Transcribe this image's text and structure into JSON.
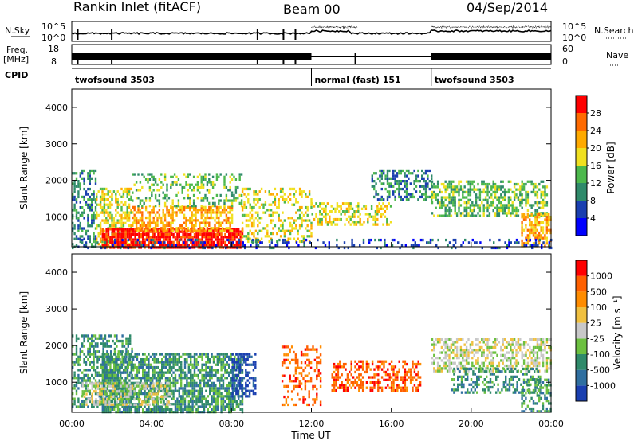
{
  "header": {
    "station": "Rankin Inlet (fitACF)",
    "beam": "Beam 00",
    "date": "04/Sep/2014"
  },
  "top_panels": {
    "nsky_label": "N.Sky",
    "nsky_ticks": [
      "10^5",
      "10^0"
    ],
    "nsearch_label": "N.Search",
    "nsearch_ticks": [
      "10^5",
      "10^0"
    ],
    "freq_label_1": "Freq.",
    "freq_label_2": "[MHz]",
    "freq_ticks": [
      "18",
      "8"
    ],
    "nave_label": "Nave",
    "nave_ticks": [
      "60",
      "0"
    ],
    "cpid_label": "CPID"
  },
  "cpid_segments": [
    {
      "name": "twofsound 3503",
      "start_hour": 0,
      "end_hour": 12
    },
    {
      "name": "normal (fast) 151",
      "start_hour": 12,
      "end_hour": 18
    },
    {
      "name": "twofsound 3503",
      "start_hour": 18,
      "end_hour": 24
    }
  ],
  "axes": {
    "x_label": "Time UT",
    "x_ticks": [
      "00:00",
      "04:00",
      "08:00",
      "12:00",
      "16:00",
      "20:00",
      "00:00"
    ],
    "x_range_hours": [
      0,
      24
    ],
    "y_label": "Slant Range [km]",
    "y_ticks": [
      1000,
      2000,
      3000,
      4000
    ],
    "y_range_km": [
      180,
      4500
    ]
  },
  "chart_data": [
    {
      "type": "heatmap",
      "quantity": "Power",
      "colorbar_label": "Power [dB]",
      "colorbar_ticks": [
        "28",
        "24",
        "20",
        "16",
        "12",
        "8",
        "4"
      ],
      "colorbar_colors": [
        "#0000ff",
        "#1a3fb0",
        "#2f8a6a",
        "#4cb84c",
        "#f0e020",
        "#ffaa00",
        "#ff6a00",
        "#ff0000"
      ],
      "regions": [
        {
          "t0": 0.0,
          "t1": 1.2,
          "r0": 200,
          "r1": 2300,
          "level": 2,
          "density": 0.45
        },
        {
          "t0": 1.2,
          "t1": 3.0,
          "r0": 200,
          "r1": 1800,
          "level": 4,
          "density": 0.55
        },
        {
          "t0": 1.5,
          "t1": 8.5,
          "r0": 180,
          "r1": 700,
          "level": 7,
          "density": 0.85
        },
        {
          "t0": 3.0,
          "t1": 8.0,
          "r0": 600,
          "r1": 1300,
          "level": 5,
          "density": 0.6
        },
        {
          "t0": 3.0,
          "t1": 8.5,
          "r0": 1300,
          "r1": 2200,
          "level": 3,
          "density": 0.3
        },
        {
          "t0": 8.5,
          "t1": 12.0,
          "r0": 300,
          "r1": 1800,
          "level": 4,
          "density": 0.35
        },
        {
          "t0": 12.0,
          "t1": 16.0,
          "r0": 800,
          "r1": 1400,
          "level": 4,
          "density": 0.4
        },
        {
          "t0": 15.0,
          "t1": 18.0,
          "r0": 1500,
          "r1": 2300,
          "level": 2,
          "density": 0.45
        },
        {
          "t0": 18.0,
          "t1": 23.8,
          "r0": 1000,
          "r1": 2000,
          "level": 3,
          "density": 0.55
        },
        {
          "t0": 22.5,
          "t1": 24.0,
          "r0": 200,
          "r1": 1100,
          "level": 5,
          "density": 0.6
        },
        {
          "t0": 0.0,
          "t1": 24.0,
          "r0": 180,
          "r1": 400,
          "level": 1,
          "density": 0.2
        }
      ]
    },
    {
      "type": "heatmap",
      "quantity": "Velocity",
      "colorbar_label": "Velocity [m s⁻¹]",
      "colorbar_ticks": [
        "1000",
        "500",
        "100",
        "25",
        "-25",
        "-100",
        "-500",
        "-1000"
      ],
      "colorbar_colors": [
        "#1a3fb0",
        "#2f6fa0",
        "#2f8a6a",
        "#6cc040",
        "#c8c8c8",
        "#f0c040",
        "#ff8c00",
        "#ff6000",
        "#ff0000"
      ],
      "regions": [
        {
          "t0": 0.0,
          "t1": 3.0,
          "r0": 300,
          "r1": 2300,
          "level": 2,
          "density": 0.5
        },
        {
          "t0": 1.5,
          "t1": 8.5,
          "r0": 200,
          "r1": 1800,
          "level": 2,
          "density": 0.7
        },
        {
          "t0": 0.5,
          "t1": 5.0,
          "r0": 400,
          "r1": 1000,
          "level": 4,
          "density": 0.5
        },
        {
          "t0": 8.0,
          "t1": 9.2,
          "r0": 600,
          "r1": 1800,
          "level": 0,
          "density": 0.5
        },
        {
          "t0": 10.5,
          "t1": 12.5,
          "r0": 400,
          "r1": 2000,
          "level": 7,
          "density": 0.35
        },
        {
          "t0": 13.0,
          "t1": 17.5,
          "r0": 800,
          "r1": 1600,
          "level": 7,
          "density": 0.45
        },
        {
          "t0": 18.0,
          "t1": 24.0,
          "r0": 1300,
          "r1": 2200,
          "level": 4,
          "density": 0.5
        },
        {
          "t0": 19.0,
          "t1": 23.5,
          "r0": 700,
          "r1": 1400,
          "level": 2,
          "density": 0.4
        },
        {
          "t0": 22.5,
          "t1": 24.0,
          "r0": 200,
          "r1": 1100,
          "level": 2,
          "density": 0.5
        }
      ]
    }
  ]
}
